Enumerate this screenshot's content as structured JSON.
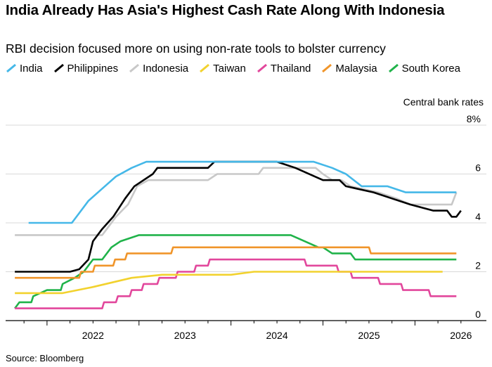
{
  "title": "India Already Has Asia's Highest Cash Rate Along With Indonesia",
  "subtitle": "RBI decision focused more on using non-rate tools to bolster currency",
  "source": "Source: Bloomberg",
  "chart_data": {
    "type": "line",
    "unit_label": "Central bank rates",
    "ylim": [
      0,
      8
    ],
    "y_ticks": [
      0,
      2,
      4,
      6,
      8
    ],
    "y_tick_labels": [
      "0",
      "2",
      "4",
      "6",
      "8%"
    ],
    "xlim": [
      2021.55,
      2026.7
    ],
    "x_ticks": [
      2022,
      2023,
      2024,
      2025,
      2026
    ],
    "x_tick_labels": [
      "2022",
      "2023",
      "2024",
      "2025",
      "2026"
    ],
    "grid": true,
    "legend_position": "top-left",
    "series": [
      {
        "name": "India",
        "color": "#45b8e8",
        "points": [
          [
            2021.8,
            4.0
          ],
          [
            2022.27,
            4.0
          ],
          [
            2022.35,
            4.4
          ],
          [
            2022.45,
            4.9
          ],
          [
            2022.6,
            5.4
          ],
          [
            2022.75,
            5.9
          ],
          [
            2022.92,
            6.25
          ],
          [
            2023.08,
            6.5
          ],
          [
            2024.9,
            6.5
          ],
          [
            2025.1,
            6.25
          ],
          [
            2025.25,
            6.0
          ],
          [
            2025.42,
            5.5
          ],
          [
            2025.7,
            5.5
          ],
          [
            2025.9,
            5.25
          ],
          [
            2026.45,
            5.25
          ]
        ]
      },
      {
        "name": "Philippines",
        "color": "#000000",
        "points": [
          [
            2021.65,
            2.0
          ],
          [
            2022.25,
            2.0
          ],
          [
            2022.35,
            2.1
          ],
          [
            2022.45,
            2.5
          ],
          [
            2022.5,
            3.25
          ],
          [
            2022.6,
            3.75
          ],
          [
            2022.72,
            4.25
          ],
          [
            2022.85,
            5.0
          ],
          [
            2022.95,
            5.5
          ],
          [
            2023.05,
            5.75
          ],
          [
            2023.15,
            6.0
          ],
          [
            2023.2,
            6.25
          ],
          [
            2023.75,
            6.25
          ],
          [
            2023.82,
            6.5
          ],
          [
            2024.5,
            6.5
          ],
          [
            2024.7,
            6.25
          ],
          [
            2025.0,
            5.75
          ],
          [
            2025.18,
            5.75
          ],
          [
            2025.25,
            5.5
          ],
          [
            2025.55,
            5.25
          ],
          [
            2025.75,
            5.0
          ],
          [
            2025.95,
            4.75
          ],
          [
            2026.2,
            4.5
          ],
          [
            2026.35,
            4.5
          ],
          [
            2026.4,
            4.25
          ],
          [
            2026.45,
            4.25
          ],
          [
            2026.5,
            4.5
          ]
        ]
      },
      {
        "name": "Indonesia",
        "color": "#c8c8c8",
        "points": [
          [
            2021.65,
            3.5
          ],
          [
            2022.6,
            3.5
          ],
          [
            2022.65,
            3.75
          ],
          [
            2022.75,
            4.25
          ],
          [
            2022.88,
            4.75
          ],
          [
            2022.98,
            5.5
          ],
          [
            2023.1,
            5.75
          ],
          [
            2023.75,
            5.75
          ],
          [
            2023.85,
            6.0
          ],
          [
            2024.3,
            6.0
          ],
          [
            2024.35,
            6.25
          ],
          [
            2024.92,
            6.25
          ],
          [
            2025.0,
            6.0
          ],
          [
            2025.1,
            5.75
          ],
          [
            2025.2,
            5.75
          ],
          [
            2025.3,
            5.5
          ],
          [
            2025.6,
            5.25
          ],
          [
            2025.8,
            5.0
          ],
          [
            2025.95,
            4.75
          ],
          [
            2026.4,
            4.75
          ],
          [
            2026.45,
            5.25
          ]
        ]
      },
      {
        "name": "Taiwan",
        "color": "#f2d22e",
        "points": [
          [
            2021.65,
            1.125
          ],
          [
            2022.17,
            1.125
          ],
          [
            2022.5,
            1.375
          ],
          [
            2022.92,
            1.75
          ],
          [
            2023.25,
            1.875
          ],
          [
            2024.0,
            1.875
          ],
          [
            2024.25,
            2.0
          ],
          [
            2026.3,
            2.0
          ]
        ]
      },
      {
        "name": "Thailand",
        "color": "#e2479c",
        "points": [
          [
            2021.65,
            0.5
          ],
          [
            2022.6,
            0.5
          ],
          [
            2022.62,
            0.75
          ],
          [
            2022.75,
            0.75
          ],
          [
            2022.77,
            1.0
          ],
          [
            2022.9,
            1.0
          ],
          [
            2022.92,
            1.25
          ],
          [
            2023.03,
            1.25
          ],
          [
            2023.05,
            1.5
          ],
          [
            2023.2,
            1.5
          ],
          [
            2023.22,
            1.75
          ],
          [
            2023.4,
            1.75
          ],
          [
            2023.42,
            2.0
          ],
          [
            2023.6,
            2.0
          ],
          [
            2023.62,
            2.25
          ],
          [
            2023.75,
            2.25
          ],
          [
            2023.77,
            2.5
          ],
          [
            2024.8,
            2.5
          ],
          [
            2024.82,
            2.25
          ],
          [
            2025.15,
            2.25
          ],
          [
            2025.17,
            2.0
          ],
          [
            2025.3,
            2.0
          ],
          [
            2025.32,
            1.75
          ],
          [
            2025.6,
            1.75
          ],
          [
            2025.62,
            1.5
          ],
          [
            2025.85,
            1.5
          ],
          [
            2025.87,
            1.25
          ],
          [
            2026.15,
            1.25
          ],
          [
            2026.17,
            1.0
          ],
          [
            2026.45,
            1.0
          ]
        ]
      },
      {
        "name": "Malaysia",
        "color": "#f0952a",
        "points": [
          [
            2021.65,
            1.75
          ],
          [
            2022.35,
            1.75
          ],
          [
            2022.37,
            2.0
          ],
          [
            2022.5,
            2.0
          ],
          [
            2022.52,
            2.25
          ],
          [
            2022.72,
            2.25
          ],
          [
            2022.74,
            2.5
          ],
          [
            2022.85,
            2.5
          ],
          [
            2022.87,
            2.75
          ],
          [
            2023.35,
            2.75
          ],
          [
            2023.37,
            3.0
          ],
          [
            2025.5,
            3.0
          ],
          [
            2025.52,
            2.75
          ],
          [
            2026.45,
            2.75
          ]
        ]
      },
      {
        "name": "South Korea",
        "color": "#20b34a",
        "points": [
          [
            2021.65,
            0.5
          ],
          [
            2021.7,
            0.75
          ],
          [
            2021.83,
            0.75
          ],
          [
            2021.85,
            1.0
          ],
          [
            2022.0,
            1.25
          ],
          [
            2022.15,
            1.25
          ],
          [
            2022.17,
            1.5
          ],
          [
            2022.3,
            1.75
          ],
          [
            2022.4,
            2.0
          ],
          [
            2022.5,
            2.5
          ],
          [
            2022.6,
            2.5
          ],
          [
            2022.7,
            3.0
          ],
          [
            2022.8,
            3.25
          ],
          [
            2023.0,
            3.5
          ],
          [
            2024.65,
            3.5
          ],
          [
            2024.8,
            3.25
          ],
          [
            2024.95,
            3.0
          ],
          [
            2025.0,
            3.0
          ],
          [
            2025.1,
            2.75
          ],
          [
            2025.3,
            2.75
          ],
          [
            2025.35,
            2.5
          ],
          [
            2026.45,
            2.5
          ]
        ]
      }
    ]
  }
}
